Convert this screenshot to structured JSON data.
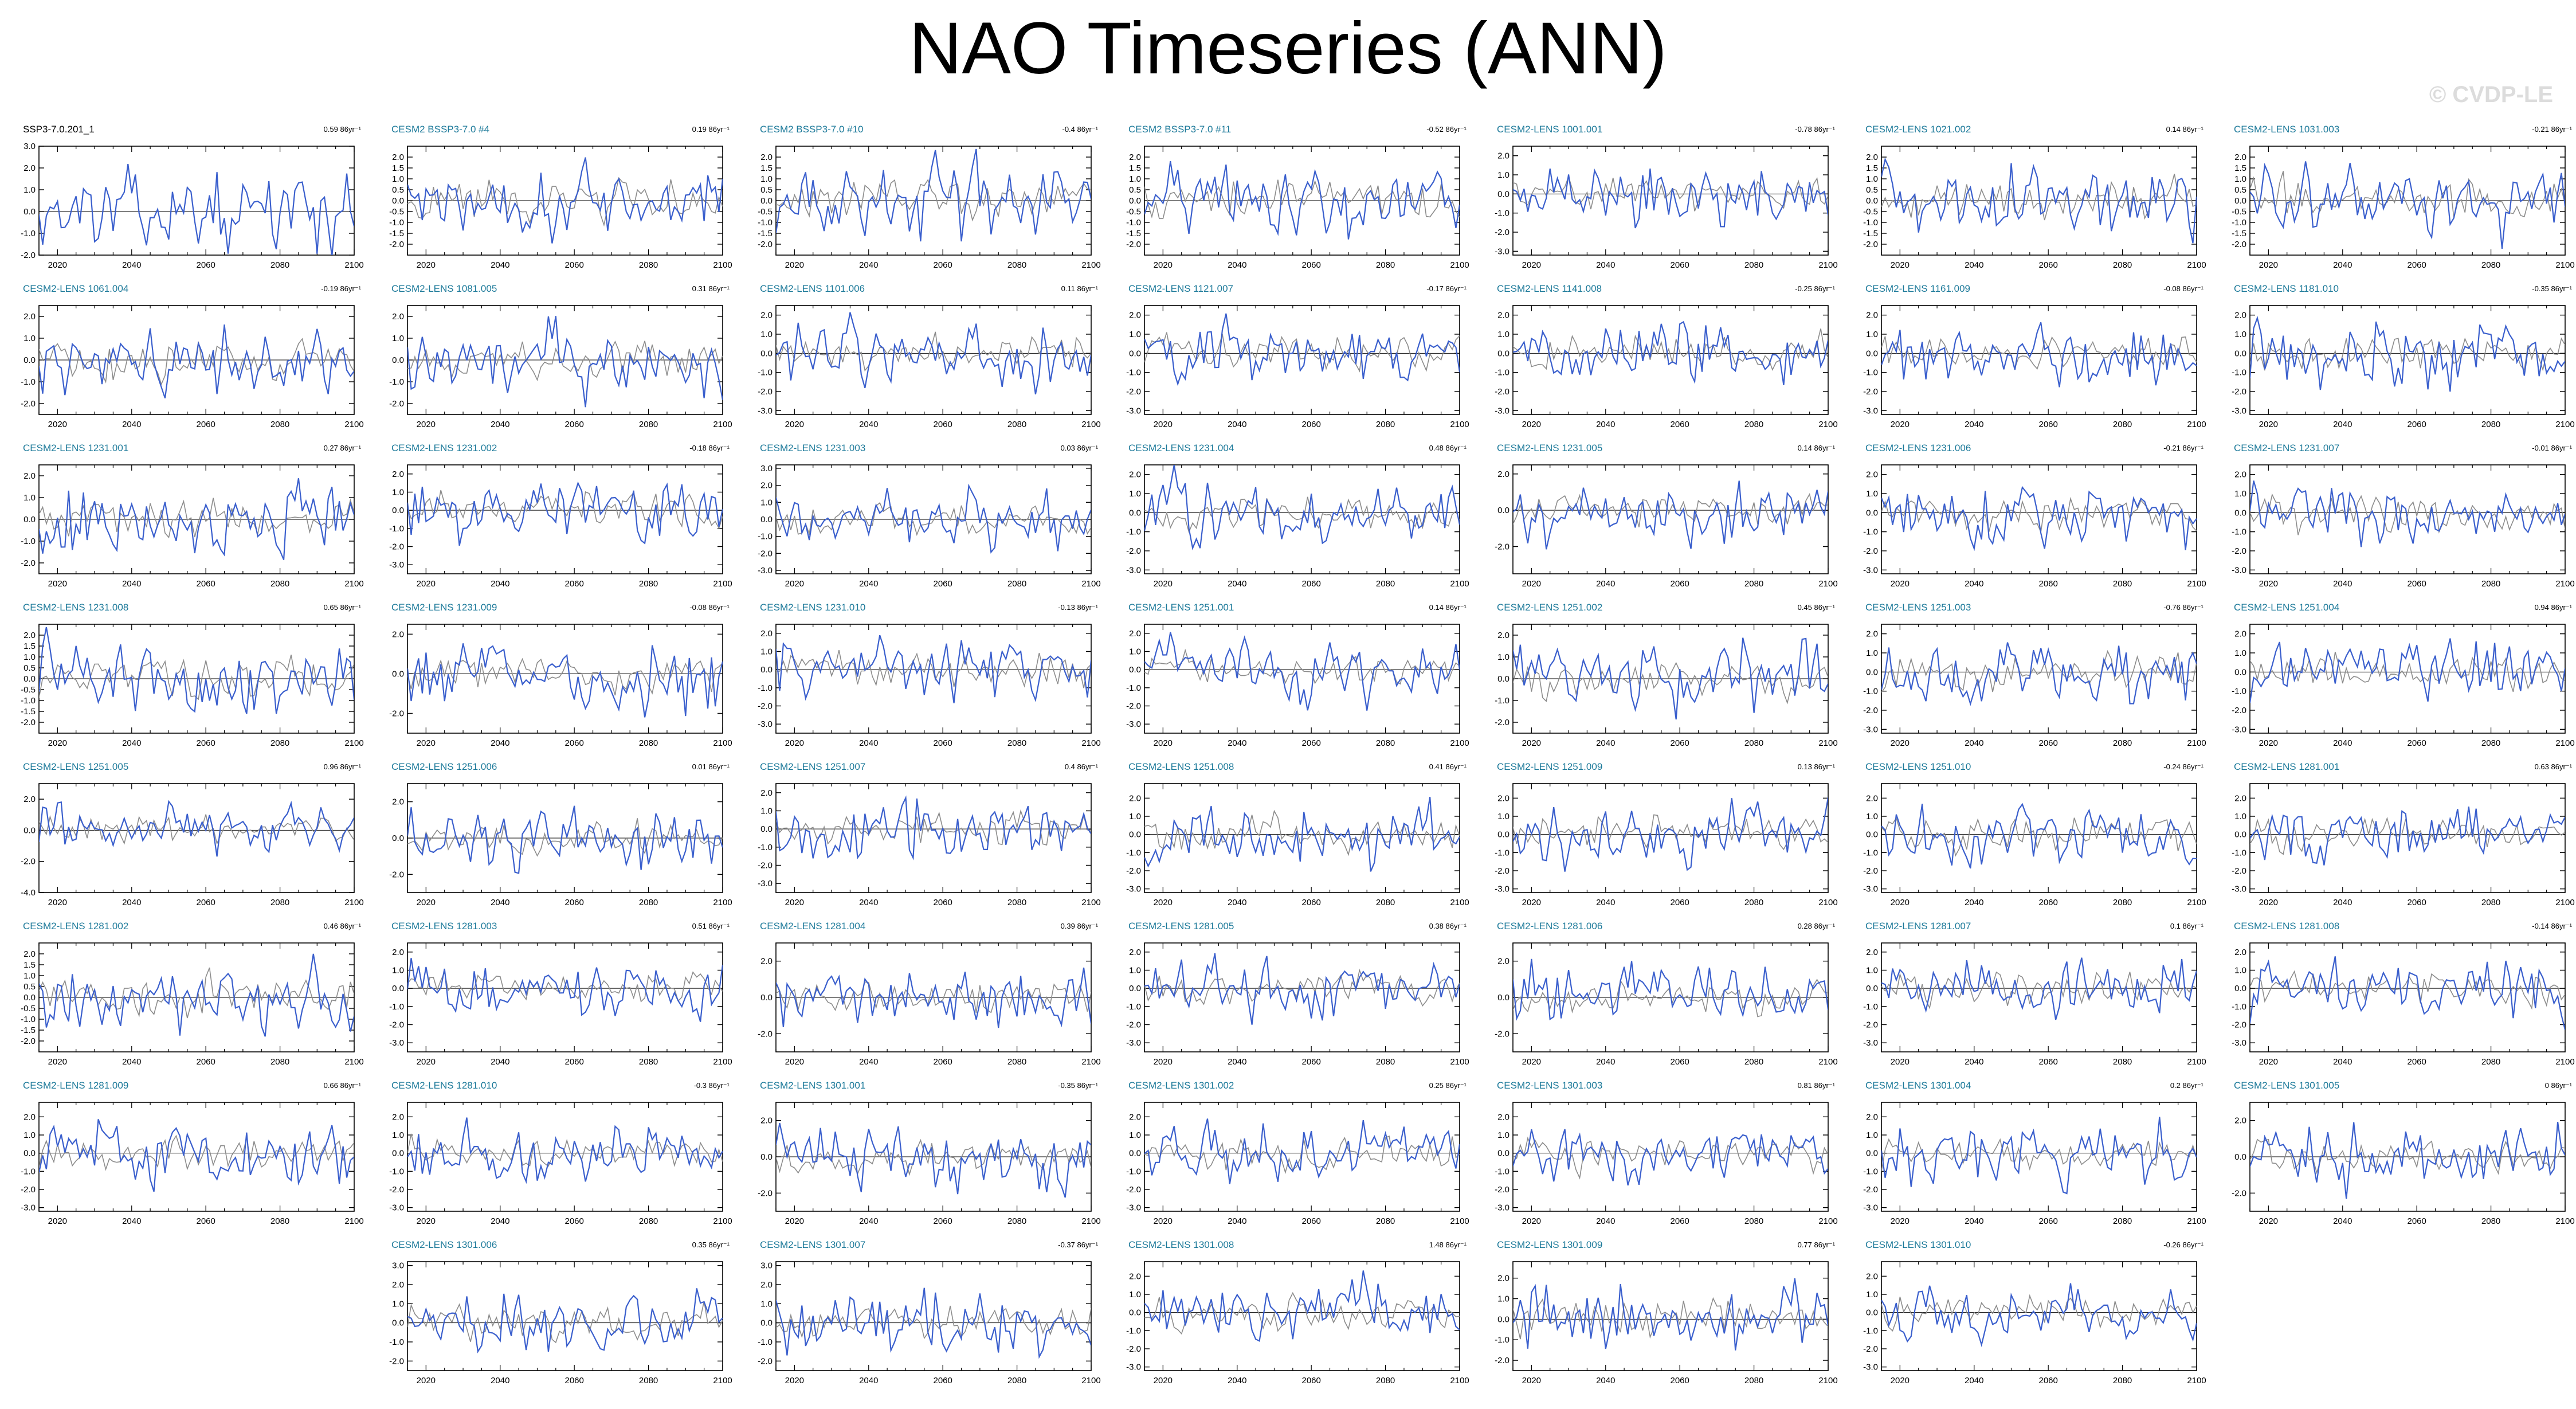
{
  "title": "NAO Timeseries (ANN)",
  "watermark": "© CVDP-LE",
  "colors": {
    "obs_line": "#3a5fcd",
    "model_line": "#3a5fcd",
    "ensemble_mean": "#8c8c8c",
    "obs_title": "#000000",
    "model_title": "#1d7a9a",
    "zero_line": "#000000"
  },
  "chart_data": {
    "type": "line",
    "x_range": [
      2015,
      2100
    ],
    "x_ticks": [
      "2020",
      "2040",
      "2060",
      "2080",
      "2100"
    ],
    "note_series": "Each panel: member NAO index (blue) with ensemble mean (gray); values not labeled individually.",
    "panels": [
      {
        "name": "SSP3-7.0.201_1",
        "trend": "0.59 86yr⁻¹",
        "ylim": [
          -2,
          3
        ],
        "yticks": [
          "3.0",
          "2.0",
          "1.0",
          "0.0",
          "-1.0",
          "-2.0"
        ],
        "obs": true
      },
      {
        "name": "CESM2 BSSP3-7.0 #4",
        "trend": "0.19 86yr⁻¹",
        "ylim": [
          -2.5,
          2.5
        ],
        "yticks": [
          "2.0",
          "1.5",
          "1.0",
          "0.5",
          "0.0",
          "-0.5",
          "-1.0",
          "-1.5",
          "-2.0"
        ]
      },
      {
        "name": "CESM2 BSSP3-7.0 #10",
        "trend": "-0.4 86yr⁻¹",
        "ylim": [
          -2.5,
          2.5
        ],
        "yticks": [
          "2.0",
          "1.5",
          "1.0",
          "0.5",
          "0.0",
          "-0.5",
          "-1.0",
          "-1.5",
          "-2.0"
        ]
      },
      {
        "name": "CESM2 BSSP3-7.0 #11",
        "trend": "-0.52 86yr⁻¹",
        "ylim": [
          -2.5,
          2.5
        ],
        "yticks": [
          "2.0",
          "1.5",
          "1.0",
          "0.5",
          "0.0",
          "-0.5",
          "-1.0",
          "-1.5",
          "-2.0"
        ]
      },
      {
        "name": "CESM2-LENS 1001.001",
        "trend": "-0.78 86yr⁻¹",
        "ylim": [
          -3.2,
          2.5
        ],
        "yticks": [
          "2.0",
          "1.0",
          "0.0",
          "-1.0",
          "-2.0",
          "-3.0"
        ]
      },
      {
        "name": "CESM2-LENS 1021.002",
        "trend": "0.14 86yr⁻¹",
        "ylim": [
          -2.5,
          2.5
        ],
        "yticks": [
          "2.0",
          "1.5",
          "1.0",
          "0.5",
          "0.0",
          "-0.5",
          "-1.0",
          "-1.5",
          "-2.0"
        ]
      },
      {
        "name": "CESM2-LENS 1031.003",
        "trend": "-0.21 86yr⁻¹",
        "ylim": [
          -2.5,
          2.5
        ],
        "yticks": [
          "2.0",
          "1.5",
          "1.0",
          "0.5",
          "0.0",
          "-0.5",
          "-1.0",
          "-1.5",
          "-2.0"
        ]
      },
      {
        "name": "CESM2-LENS 1061.004",
        "trend": "-0.19 86yr⁻¹",
        "ylim": [
          -2.5,
          2.5
        ],
        "yticks": [
          "2.0",
          "1.0",
          "0.0",
          "-1.0",
          "-2.0"
        ]
      },
      {
        "name": "CESM2-LENS 1081.005",
        "trend": "0.31 86yr⁻¹",
        "ylim": [
          -2.5,
          2.5
        ],
        "yticks": [
          "2.0",
          "1.0",
          "0.0",
          "-1.0",
          "-2.0"
        ]
      },
      {
        "name": "CESM2-LENS 1101.006",
        "trend": "0.11 86yr⁻¹",
        "ylim": [
          -3.2,
          2.5
        ],
        "yticks": [
          "2.0",
          "1.0",
          "0.0",
          "-1.0",
          "-2.0",
          "-3.0"
        ]
      },
      {
        "name": "CESM2-LENS 1121.007",
        "trend": "-0.17 86yr⁻¹",
        "ylim": [
          -3.2,
          2.5
        ],
        "yticks": [
          "2.0",
          "1.0",
          "0.0",
          "-1.0",
          "-2.0",
          "-3.0"
        ]
      },
      {
        "name": "CESM2-LENS 1141.008",
        "trend": "-0.25 86yr⁻¹",
        "ylim": [
          -3.2,
          2.5
        ],
        "yticks": [
          "2.0",
          "1.0",
          "0.0",
          "-1.0",
          "-2.0",
          "-3.0"
        ]
      },
      {
        "name": "CESM2-LENS 1161.009",
        "trend": "-0.08 86yr⁻¹",
        "ylim": [
          -3.2,
          2.5
        ],
        "yticks": [
          "2.0",
          "1.0",
          "0.0",
          "-1.0",
          "-2.0",
          "-3.0"
        ]
      },
      {
        "name": "CESM2-LENS 1181.010",
        "trend": "-0.35 86yr⁻¹",
        "ylim": [
          -3.2,
          2.5
        ],
        "yticks": [
          "2.0",
          "1.0",
          "0.0",
          "-1.0",
          "-2.0",
          "-3.0"
        ]
      },
      {
        "name": "CESM2-LENS 1231.001",
        "trend": "0.27 86yr⁻¹",
        "ylim": [
          -2.5,
          2.5
        ],
        "yticks": [
          "2.0",
          "1.0",
          "0.0",
          "-1.0",
          "-2.0"
        ]
      },
      {
        "name": "CESM2-LENS 1231.002",
        "trend": "-0.18 86yr⁻¹",
        "ylim": [
          -3.5,
          2.5
        ],
        "yticks": [
          "2.0",
          "1.0",
          "0.0",
          "-1.0",
          "-2.0",
          "-3.0"
        ]
      },
      {
        "name": "CESM2-LENS 1231.003",
        "trend": "0.03 86yr⁻¹",
        "ylim": [
          -3.2,
          3.2
        ],
        "yticks": [
          "3.0",
          "2.0",
          "1.0",
          "0.0",
          "-1.0",
          "-2.0",
          "-3.0"
        ]
      },
      {
        "name": "CESM2-LENS 1231.004",
        "trend": "0.48 86yr⁻¹",
        "ylim": [
          -3.2,
          2.5
        ],
        "yticks": [
          "2.0",
          "1.0",
          "0.0",
          "-1.0",
          "-2.0",
          "-3.0"
        ]
      },
      {
        "name": "CESM2-LENS 1231.005",
        "trend": "0.14 86yr⁻¹",
        "ylim": [
          -3.5,
          2.5
        ],
        "yticks": [
          "2.0",
          "0.0",
          "-2.0"
        ]
      },
      {
        "name": "CESM2-LENS 1231.006",
        "trend": "-0.21 86yr⁻¹",
        "ylim": [
          -3.2,
          2.5
        ],
        "yticks": [
          "2.0",
          "1.0",
          "0.0",
          "-1.0",
          "-2.0",
          "-3.0"
        ]
      },
      {
        "name": "CESM2-LENS 1231.007",
        "trend": "-0.01 86yr⁻¹",
        "ylim": [
          -3.2,
          2.5
        ],
        "yticks": [
          "2.0",
          "1.0",
          "0.0",
          "-1.0",
          "-2.0",
          "-3.0"
        ]
      },
      {
        "name": "CESM2-LENS 1231.008",
        "trend": "0.65 86yr⁻¹",
        "ylim": [
          -2.5,
          2.5
        ],
        "yticks": [
          "2.0",
          "1.5",
          "1.0",
          "0.5",
          "0.0",
          "-0.5",
          "-1.0",
          "-1.5",
          "-2.0"
        ]
      },
      {
        "name": "CESM2-LENS 1231.009",
        "trend": "-0.08 86yr⁻¹",
        "ylim": [
          -3.0,
          2.5
        ],
        "yticks": [
          "2.0",
          "0.0",
          "-2.0"
        ]
      },
      {
        "name": "CESM2-LENS 1231.010",
        "trend": "-0.13 86yr⁻¹",
        "ylim": [
          -3.5,
          2.5
        ],
        "yticks": [
          "2.0",
          "1.0",
          "0.0",
          "-1.0",
          "-2.0",
          "-3.0"
        ]
      },
      {
        "name": "CESM2-LENS 1251.001",
        "trend": "0.14 86yr⁻¹",
        "ylim": [
          -3.5,
          2.5
        ],
        "yticks": [
          "2.0",
          "1.0",
          "0.0",
          "-1.0",
          "-2.0",
          "-3.0"
        ]
      },
      {
        "name": "CESM2-LENS 1251.002",
        "trend": "0.45 86yr⁻¹",
        "ylim": [
          -2.5,
          2.5
        ],
        "yticks": [
          "2.0",
          "1.0",
          "0.0",
          "-1.0",
          "-2.0"
        ]
      },
      {
        "name": "CESM2-LENS 1251.003",
        "trend": "-0.76 86yr⁻¹",
        "ylim": [
          -3.2,
          2.5
        ],
        "yticks": [
          "2.0",
          "1.0",
          "0.0",
          "-1.0",
          "-2.0",
          "-3.0"
        ]
      },
      {
        "name": "CESM2-LENS 1251.004",
        "trend": "0.94 86yr⁻¹",
        "ylim": [
          -3.2,
          2.5
        ],
        "yticks": [
          "2.0",
          "1.0",
          "0.0",
          "-1.0",
          "-2.0",
          "-3.0"
        ]
      },
      {
        "name": "CESM2-LENS 1251.005",
        "trend": "0.96 86yr⁻¹",
        "ylim": [
          -4.0,
          3.0
        ],
        "yticks": [
          "2.0",
          "0.0",
          "-2.0",
          "-4.0"
        ]
      },
      {
        "name": "CESM2-LENS 1251.006",
        "trend": "0.01 86yr⁻¹",
        "ylim": [
          -3.0,
          3.0
        ],
        "yticks": [
          "2.0",
          "0.0",
          "-2.0"
        ]
      },
      {
        "name": "CESM2-LENS 1251.007",
        "trend": "0.4 86yr⁻¹",
        "ylim": [
          -3.5,
          2.5
        ],
        "yticks": [
          "2.0",
          "1.0",
          "0.0",
          "-1.0",
          "-2.0",
          "-3.0"
        ]
      },
      {
        "name": "CESM2-LENS 1251.008",
        "trend": "0.41 86yr⁻¹",
        "ylim": [
          -3.2,
          2.8
        ],
        "yticks": [
          "2.0",
          "1.0",
          "0.0",
          "-1.0",
          "-2.0",
          "-3.0"
        ]
      },
      {
        "name": "CESM2-LENS 1251.009",
        "trend": "0.13 86yr⁻¹",
        "ylim": [
          -3.2,
          2.8
        ],
        "yticks": [
          "2.0",
          "1.0",
          "0.0",
          "-1.0",
          "-2.0",
          "-3.0"
        ]
      },
      {
        "name": "CESM2-LENS 1251.010",
        "trend": "-0.24 86yr⁻¹",
        "ylim": [
          -3.2,
          2.8
        ],
        "yticks": [
          "2.0",
          "1.0",
          "0.0",
          "-1.0",
          "-2.0",
          "-3.0"
        ]
      },
      {
        "name": "CESM2-LENS 1281.001",
        "trend": "0.63 86yr⁻¹",
        "ylim": [
          -3.2,
          2.8
        ],
        "yticks": [
          "2.0",
          "1.0",
          "0.0",
          "-1.0",
          "-2.0",
          "-3.0"
        ]
      },
      {
        "name": "CESM2-LENS 1281.002",
        "trend": "0.46 86yr⁻¹",
        "ylim": [
          -2.5,
          2.5
        ],
        "yticks": [
          "2.0",
          "1.5",
          "1.0",
          "0.5",
          "0.0",
          "-0.5",
          "-1.0",
          "-1.5",
          "-2.0"
        ]
      },
      {
        "name": "CESM2-LENS 1281.003",
        "trend": "0.51 86yr⁻¹",
        "ylim": [
          -3.5,
          2.5
        ],
        "yticks": [
          "2.0",
          "1.0",
          "0.0",
          "-1.0",
          "-2.0",
          "-3.0"
        ]
      },
      {
        "name": "CESM2-LENS 1281.004",
        "trend": "0.39 86yr⁻¹",
        "ylim": [
          -3.0,
          3.0
        ],
        "yticks": [
          "2.0",
          "0.0",
          "-2.0"
        ]
      },
      {
        "name": "CESM2-LENS 1281.005",
        "trend": "0.38 86yr⁻¹",
        "ylim": [
          -3.5,
          2.5
        ],
        "yticks": [
          "2.0",
          "1.0",
          "0.0",
          "-1.0",
          "-2.0",
          "-3.0"
        ]
      },
      {
        "name": "CESM2-LENS 1281.006",
        "trend": "0.28 86yr⁻¹",
        "ylim": [
          -3.0,
          3.0
        ],
        "yticks": [
          "2.0",
          "0.0",
          "-2.0"
        ]
      },
      {
        "name": "CESM2-LENS 1281.007",
        "trend": "0.1 86yr⁻¹",
        "ylim": [
          -3.5,
          2.5
        ],
        "yticks": [
          "2.0",
          "1.0",
          "0.0",
          "-1.0",
          "-2.0",
          "-3.0"
        ]
      },
      {
        "name": "CESM2-LENS 1281.008",
        "trend": "-0.14 86yr⁻¹",
        "ylim": [
          -3.5,
          2.5
        ],
        "yticks": [
          "2.0",
          "1.0",
          "0.0",
          "-1.0",
          "-2.0",
          "-3.0"
        ]
      },
      {
        "name": "CESM2-LENS 1281.009",
        "trend": "0.66 86yr⁻¹",
        "ylim": [
          -3.2,
          2.8
        ],
        "yticks": [
          "2.0",
          "1.0",
          "0.0",
          "-1.0",
          "-2.0",
          "-3.0"
        ]
      },
      {
        "name": "CESM2-LENS 1281.010",
        "trend": "-0.3 86yr⁻¹",
        "ylim": [
          -3.2,
          2.8
        ],
        "yticks": [
          "2.0",
          "1.0",
          "0.0",
          "-1.0",
          "-2.0",
          "-3.0"
        ]
      },
      {
        "name": "CESM2-LENS 1301.001",
        "trend": "-0.35 86yr⁻¹",
        "ylim": [
          -3.0,
          3.0
        ],
        "yticks": [
          "2.0",
          "0.0",
          "-2.0"
        ]
      },
      {
        "name": "CESM2-LENS 1301.002",
        "trend": "0.25 86yr⁻¹",
        "ylim": [
          -3.2,
          2.8
        ],
        "yticks": [
          "2.0",
          "1.0",
          "0.0",
          "-1.0",
          "-2.0",
          "-3.0"
        ]
      },
      {
        "name": "CESM2-LENS 1301.003",
        "trend": "0.81 86yr⁻¹",
        "ylim": [
          -3.2,
          2.8
        ],
        "yticks": [
          "2.0",
          "1.0",
          "0.0",
          "-1.0",
          "-2.0",
          "-3.0"
        ]
      },
      {
        "name": "CESM2-LENS 1301.004",
        "trend": "0.2 86yr⁻¹",
        "ylim": [
          -3.2,
          2.8
        ],
        "yticks": [
          "2.0",
          "1.0",
          "0.0",
          "-1.0",
          "-2.0",
          "-3.0"
        ]
      },
      {
        "name": "CESM2-LENS 1301.005",
        "trend": "0 86yr⁻¹",
        "ylim": [
          -3.0,
          3.0
        ],
        "yticks": [
          "2.0",
          "0.0",
          "-2.0"
        ]
      },
      {
        "name": "CESM2-LENS 1301.006",
        "trend": "0.35 86yr⁻¹",
        "ylim": [
          -2.5,
          3.2
        ],
        "yticks": [
          "3.0",
          "2.0",
          "1.0",
          "0.0",
          "-1.0",
          "-2.0"
        ]
      },
      {
        "name": "CESM2-LENS 1301.007",
        "trend": "-0.37 86yr⁻¹",
        "ylim": [
          -2.5,
          3.2
        ],
        "yticks": [
          "3.0",
          "2.0",
          "1.0",
          "0.0",
          "-1.0",
          "-2.0"
        ]
      },
      {
        "name": "CESM2-LENS 1301.008",
        "trend": "1.48 86yr⁻¹",
        "ylim": [
          -3.2,
          2.8
        ],
        "yticks": [
          "2.0",
          "1.0",
          "0.0",
          "-1.0",
          "-2.0",
          "-3.0"
        ]
      },
      {
        "name": "CESM2-LENS 1301.009",
        "trend": "0.77 86yr⁻¹",
        "ylim": [
          -2.5,
          2.8
        ],
        "yticks": [
          "2.0",
          "1.0",
          "0.0",
          "-1.0",
          "-2.0"
        ]
      },
      {
        "name": "CESM2-LENS 1301.010",
        "trend": "-0.26 86yr⁻¹",
        "ylim": [
          -3.2,
          2.8
        ],
        "yticks": [
          "2.0",
          "1.0",
          "0.0",
          "-1.0",
          "-2.0",
          "-3.0"
        ]
      }
    ]
  }
}
